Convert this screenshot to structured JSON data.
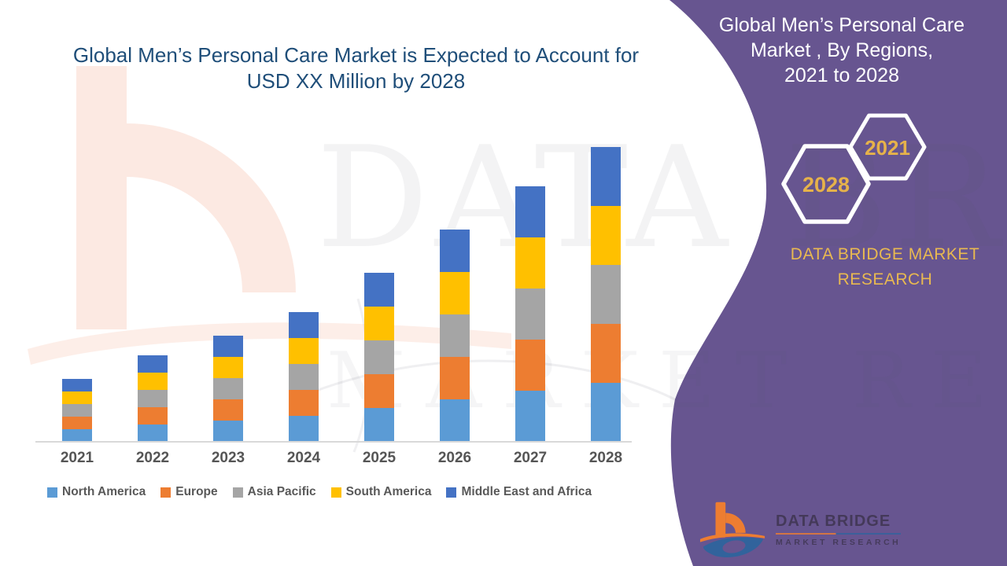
{
  "chart": {
    "title_lines": [
      "Global Men’s Personal Care Market is Expected to Account for",
      "USD XX Million by 2028"
    ]
  },
  "chart_data": {
    "type": "bar",
    "stacked": true,
    "title": "Global Men’s Personal Care Market is Expected to Account for USD XX Million by 2028",
    "categories": [
      "2021",
      "2022",
      "2023",
      "2024",
      "2025",
      "2026",
      "2027",
      "2028"
    ],
    "series": [
      {
        "name": "North America",
        "color": "#5B9BD5",
        "values": [
          16,
          22,
          27,
          33,
          43,
          54,
          65,
          75
        ]
      },
      {
        "name": "Europe",
        "color": "#ED7D31",
        "values": [
          16,
          22,
          27,
          33,
          43,
          54,
          65,
          75
        ]
      },
      {
        "name": "Asia Pacific",
        "color": "#A5A5A5",
        "values": [
          16,
          22,
          27,
          33,
          43,
          54,
          65,
          75
        ]
      },
      {
        "name": "South America",
        "color": "#FFC000",
        "values": [
          16,
          22,
          27,
          33,
          43,
          54,
          65,
          75
        ]
      },
      {
        "name": "Middle East and Africa",
        "color": "#4472C4",
        "values": [
          16,
          22,
          27,
          33,
          43,
          54,
          65,
          75
        ]
      }
    ],
    "value_axis_visible": false,
    "note": "No numeric value axis shown in source; values are relative units estimated from bar heights (equal regional segments per year).",
    "legend_position": "bottom",
    "grid": false
  },
  "side_panel": {
    "title_lines": [
      "Global Men’s Personal Care",
      "Market , By Regions,",
      "2021 to 2028"
    ],
    "badges": [
      {
        "label": "2028"
      },
      {
        "label": "2021"
      }
    ],
    "org_lines": [
      "DATA BRIDGE MARKET",
      "RESEARCH"
    ]
  },
  "footer_logo": {
    "brand": "DATA BRIDGE",
    "tagline": "MARKET RESEARCH"
  },
  "watermark": {
    "line1": "DATA BRIDGE",
    "line2": "MARKET RESEARCH"
  },
  "colors": {
    "panel_purple": "#675590",
    "gold": "#E6B24A",
    "title_blue": "#1F4E79",
    "axis_text": "#595959",
    "axis_line": "#D9D9D9",
    "logo_orange": "#ED7D31",
    "logo_blue": "#31639C",
    "watermark_peach": "#FBE2D8"
  }
}
